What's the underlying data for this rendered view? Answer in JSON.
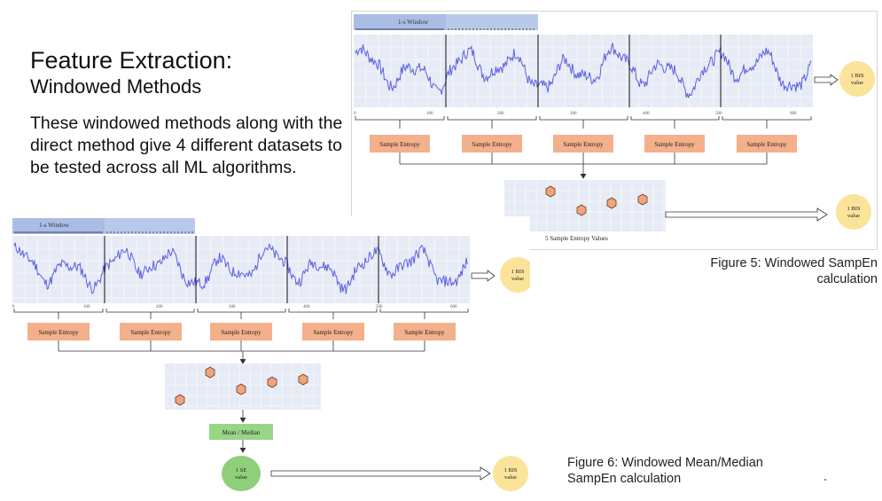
{
  "slide": {
    "title": "Feature Extraction:",
    "subtitle": "Windowed Methods",
    "body": "These windowed methods along with the direct method give 4 different datasets to be tested across all ML algorithms."
  },
  "figure5": {
    "window_label": "1-s Window",
    "axis_ticks": [
      "0",
      "100",
      "200",
      "300",
      "400",
      "500",
      "600"
    ],
    "block_label": "Sample Entropy",
    "block_count": 5,
    "bis_label_line1": "1 BIS",
    "bis_label_line2": "value",
    "scatter_caption": "5 Sample Entropy Values",
    "caption": "Figure 5: Windowed SampEn calculation"
  },
  "figure6": {
    "window_label": "1-s Window",
    "axis_ticks": [
      "0",
      "100",
      "200",
      "300",
      "400",
      "500",
      "600"
    ],
    "block_label": "Sample Entropy",
    "block_count": 5,
    "bis_label_line1": "1 BIS",
    "bis_label_line2": "value",
    "mean_median_label": "Mean / Median",
    "se_label_line1": "1 SE",
    "se_label_line2": "value",
    "caption": "Figure 6: Windowed Mean/Median SampEn calculation"
  },
  "colors": {
    "signal": "#5a5fe0",
    "plot_bg": "#e6ebf5",
    "window_bar": "#b9c9ea",
    "entropy_box": "#f4b08b",
    "bis_circle": "#fbe39a",
    "se_circle": "#8fcf7a",
    "mean_box": "#97d587",
    "hex_marker": "#f0a47c"
  }
}
